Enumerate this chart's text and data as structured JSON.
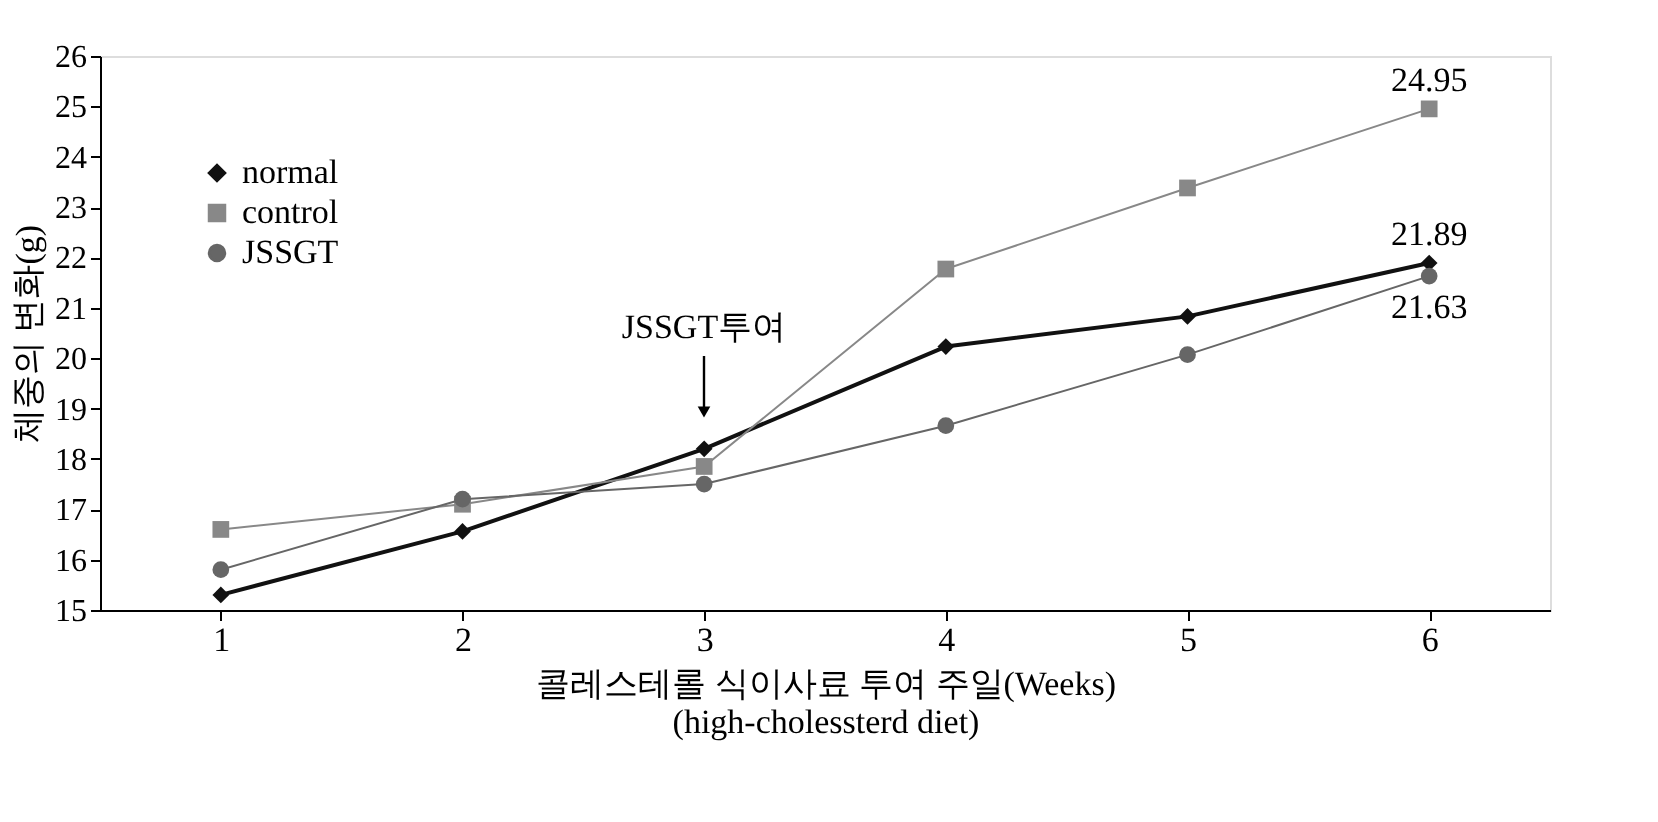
{
  "chart_data": {
    "type": "line",
    "xlabel": "콜레스테롤 식이사료 투여 주일(Weeks)\n(high-cholessterd diet)",
    "ylabel": "체중의 변화(g)",
    "x": [
      1,
      2,
      3,
      4,
      5,
      6
    ],
    "series": [
      {
        "name": "normal",
        "color": "#111111",
        "marker": "diamond",
        "values": [
          15.3,
          16.56,
          18.2,
          20.23,
          20.83,
          21.89
        ],
        "value_labels": [
          null,
          null,
          null,
          null,
          null,
          "21.89"
        ]
      },
      {
        "name": "control",
        "color": "#888888",
        "marker": "square",
        "values": [
          16.6,
          17.1,
          17.85,
          21.77,
          23.38,
          24.95
        ],
        "value_labels": [
          null,
          null,
          null,
          null,
          null,
          "24.95"
        ]
      },
      {
        "name": "JSSGT",
        "color": "#666666",
        "marker": "circle",
        "values": [
          15.8,
          17.2,
          17.5,
          18.66,
          20.07,
          21.63
        ],
        "value_labels": [
          null,
          null,
          null,
          null,
          null,
          "21.63"
        ]
      }
    ],
    "annotations": [
      "JSSGT투여"
    ],
    "xlim": [
      0.5,
      6.5
    ],
    "xticks": [
      1,
      2,
      3,
      4,
      5,
      6
    ],
    "ylim": [
      15,
      26
    ],
    "yticks": [
      15,
      16,
      17,
      18,
      19,
      20,
      21,
      22,
      23,
      24,
      25,
      26
    ],
    "grid": false,
    "legend": "top left",
    "line_style": "solid"
  }
}
